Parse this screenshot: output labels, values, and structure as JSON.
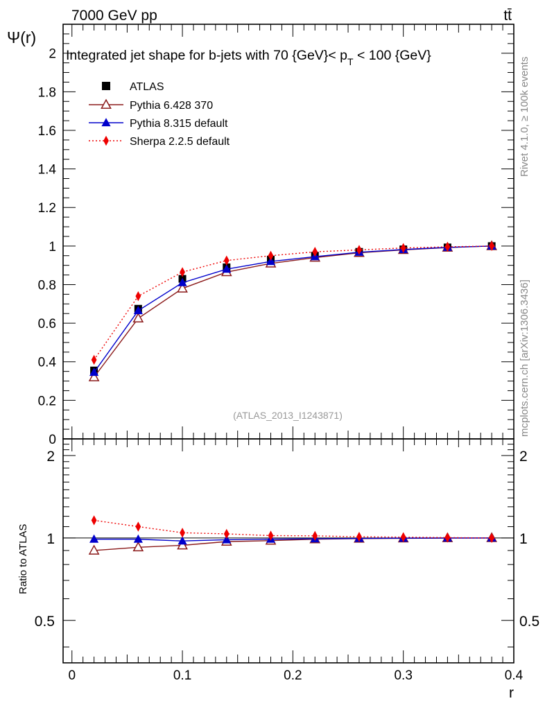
{
  "header": {
    "left": "7000 GeV pp",
    "right": "tt̄"
  },
  "side_labels": {
    "rivet": "Rivet 4.1.0, ≥ 100k events",
    "mcplots": "mcplots.cern.ch [arXiv:1306.3436]"
  },
  "watermark": "(ATLAS_2013_I1243871)",
  "chart_data": [
    {
      "type": "line",
      "panel": "main",
      "title": "Integrated jet shape for b-jets with 70 {GeV}< p_T < 100 {GeV}",
      "title_parts": {
        "prefix": "Integrated jet shape for b-jets with 70 {GeV}< p",
        "sub": "T",
        "suffix": " < 100 {GeV}"
      },
      "ylabel": "Ψ(r)",
      "xlabel": "r",
      "xlim": [
        -0.008,
        0.4
      ],
      "ylim": [
        0,
        2.15
      ],
      "x_ticks": [
        "0",
        "0.1",
        "0.2",
        "0.3",
        "0.4"
      ],
      "y_ticks": [
        "0",
        "0.2",
        "0.4",
        "0.6",
        "0.8",
        "1",
        "1.2",
        "1.4",
        "1.6",
        "1.8",
        "2"
      ],
      "x": [
        0.02,
        0.06,
        0.1,
        0.14,
        0.18,
        0.22,
        0.26,
        0.3,
        0.34,
        0.38
      ],
      "series": [
        {
          "name": "ATLAS",
          "color": "#000000",
          "marker": "square",
          "values": [
            0.355,
            0.675,
            0.83,
            0.89,
            0.93,
            0.95,
            0.97,
            0.983,
            0.993,
            1.0
          ]
        },
        {
          "name": "Pythia 6.428 370",
          "color": "#8b1a1a",
          "marker": "open-triangle",
          "values": [
            0.32,
            0.625,
            0.78,
            0.865,
            0.91,
            0.94,
            0.965,
            0.98,
            0.992,
            1.0
          ]
        },
        {
          "name": "Pythia 8.315 default",
          "color": "#0000cc",
          "marker": "triangle",
          "values": [
            0.345,
            0.665,
            0.81,
            0.88,
            0.92,
            0.945,
            0.968,
            0.982,
            0.993,
            1.0
          ]
        },
        {
          "name": "Sherpa 2.2.5 default",
          "color": "#ee0000",
          "marker": "diamond",
          "dashed": true,
          "values": [
            0.41,
            0.74,
            0.865,
            0.925,
            0.95,
            0.97,
            0.98,
            0.99,
            0.996,
            1.0
          ]
        }
      ]
    },
    {
      "type": "line",
      "panel": "ratio",
      "ylabel": "Ratio to ATLAS",
      "xlabel": "r",
      "xlim": [
        -0.008,
        0.4
      ],
      "ylim": [
        0.35,
        2.3
      ],
      "y_ticks": [
        "0.5",
        "1",
        "2"
      ],
      "x": [
        0.02,
        0.06,
        0.1,
        0.14,
        0.18,
        0.22,
        0.26,
        0.3,
        0.34,
        0.38
      ],
      "series": [
        {
          "name": "Pythia 6.428 370",
          "color": "#8b1a1a",
          "marker": "open-triangle",
          "values": [
            0.9,
            0.925,
            0.94,
            0.97,
            0.978,
            0.99,
            0.995,
            0.997,
            0.999,
            1.0
          ]
        },
        {
          "name": "Pythia 8.315 default",
          "color": "#0000cc",
          "marker": "triangle",
          "values": [
            0.99,
            0.99,
            0.975,
            0.985,
            0.99,
            0.993,
            0.996,
            0.998,
            1.0,
            1.0
          ]
        },
        {
          "name": "Sherpa 2.2.5 default",
          "color": "#ee0000",
          "marker": "diamond",
          "dashed": true,
          "values": [
            1.16,
            1.1,
            1.045,
            1.035,
            1.02,
            1.018,
            1.01,
            1.007,
            1.003,
            1.0
          ]
        }
      ]
    }
  ]
}
